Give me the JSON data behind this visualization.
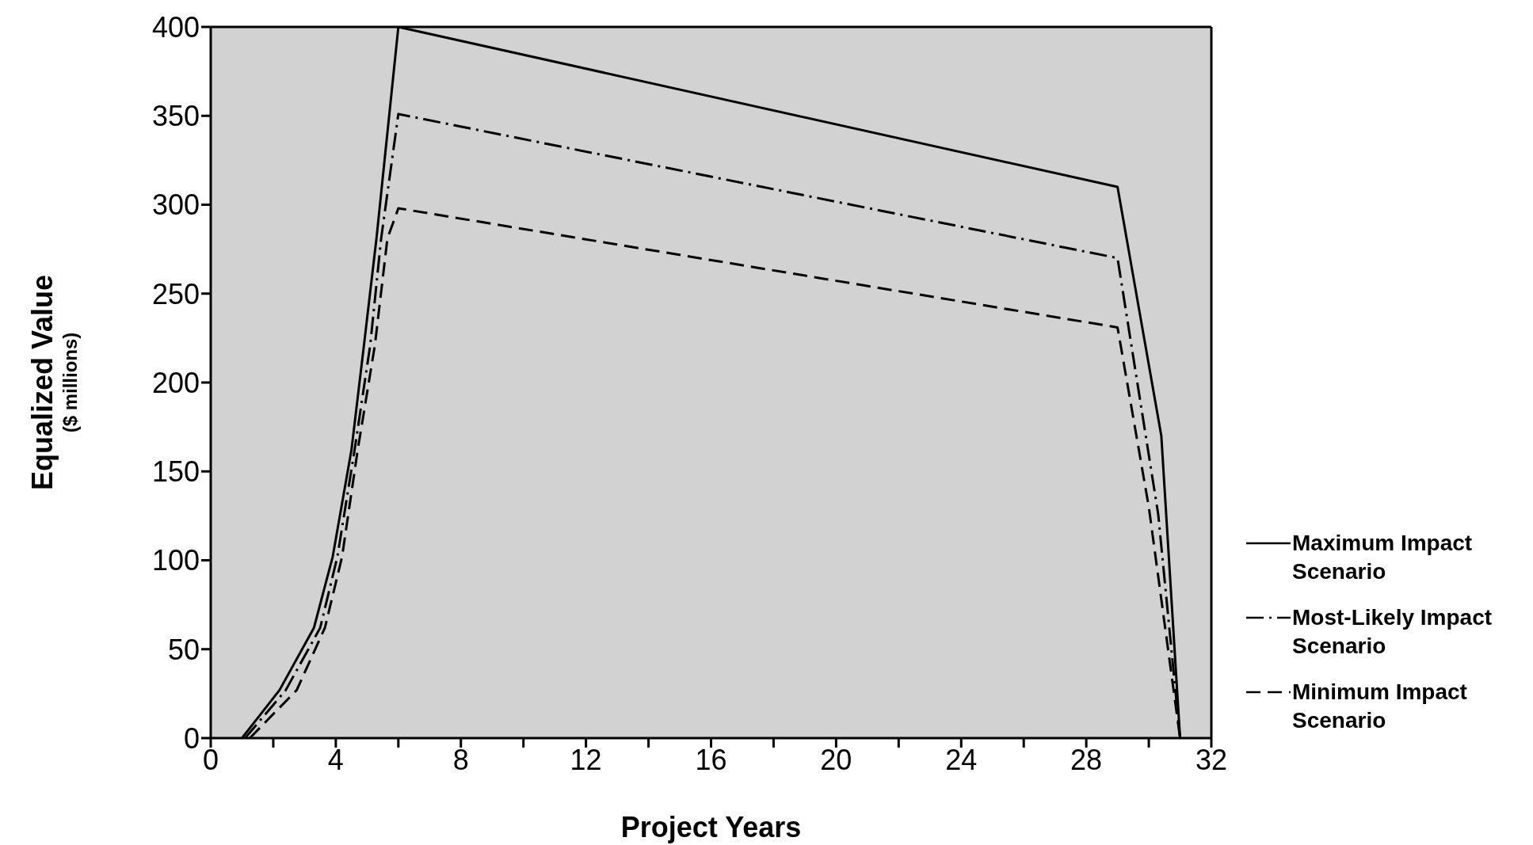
{
  "chart_data": {
    "type": "line",
    "xlabel": "Project Years",
    "ylabel": "Equalized Value",
    "annotations": [
      "($ millions)"
    ],
    "xlim": [
      0,
      32
    ],
    "ylim": [
      0,
      400
    ],
    "xticks": [
      0,
      {
        "value": 2,
        "label": null
      },
      4,
      {
        "value": 6,
        "label": null
      },
      8,
      {
        "value": 10,
        "label": null
      },
      12,
      {
        "value": 14,
        "label": null
      },
      16,
      {
        "value": 18,
        "label": null
      },
      20,
      {
        "value": 22,
        "label": null
      },
      24,
      {
        "value": 26,
        "label": null
      },
      28,
      {
        "value": 30,
        "label": null
      },
      32
    ],
    "yticks": [
      0,
      50,
      100,
      150,
      200,
      250,
      300,
      350,
      400
    ],
    "grid": false,
    "legend": "right",
    "marker": "none",
    "series": [
      {
        "name": "Maximum Impact Scenario",
        "color": "#000000",
        "line_style": "solid",
        "x": [
          1.0,
          2.2,
          3.3,
          3.9,
          4.5,
          4.9,
          5.3,
          6.0,
          29.0,
          30.4,
          31.0
        ],
        "values": [
          0,
          27,
          62,
          102,
          162,
          221,
          281,
          400,
          310,
          170,
          0
        ]
      },
      {
        "name": "Most-Likely Impact Scenario",
        "color": "#000000",
        "line_style": "dashdot",
        "x": [
          1.1,
          2.4,
          3.5,
          4.05,
          4.6,
          5.1,
          5.45,
          6.0,
          29.0,
          30.3,
          31.0
        ],
        "values": [
          0,
          27,
          62,
          102,
          162,
          221,
          281,
          351,
          270,
          126,
          0
        ]
      },
      {
        "name": "Minimum Impact Scenario",
        "color": "#000000",
        "line_style": "dashed",
        "x": [
          1.25,
          2.75,
          3.65,
          4.2,
          4.7,
          5.25,
          5.65,
          6.0,
          29.0,
          30.0,
          31.0
        ],
        "values": [
          0,
          27,
          62,
          102,
          162,
          221,
          281,
          298,
          231,
          130,
          0
        ]
      }
    ]
  }
}
